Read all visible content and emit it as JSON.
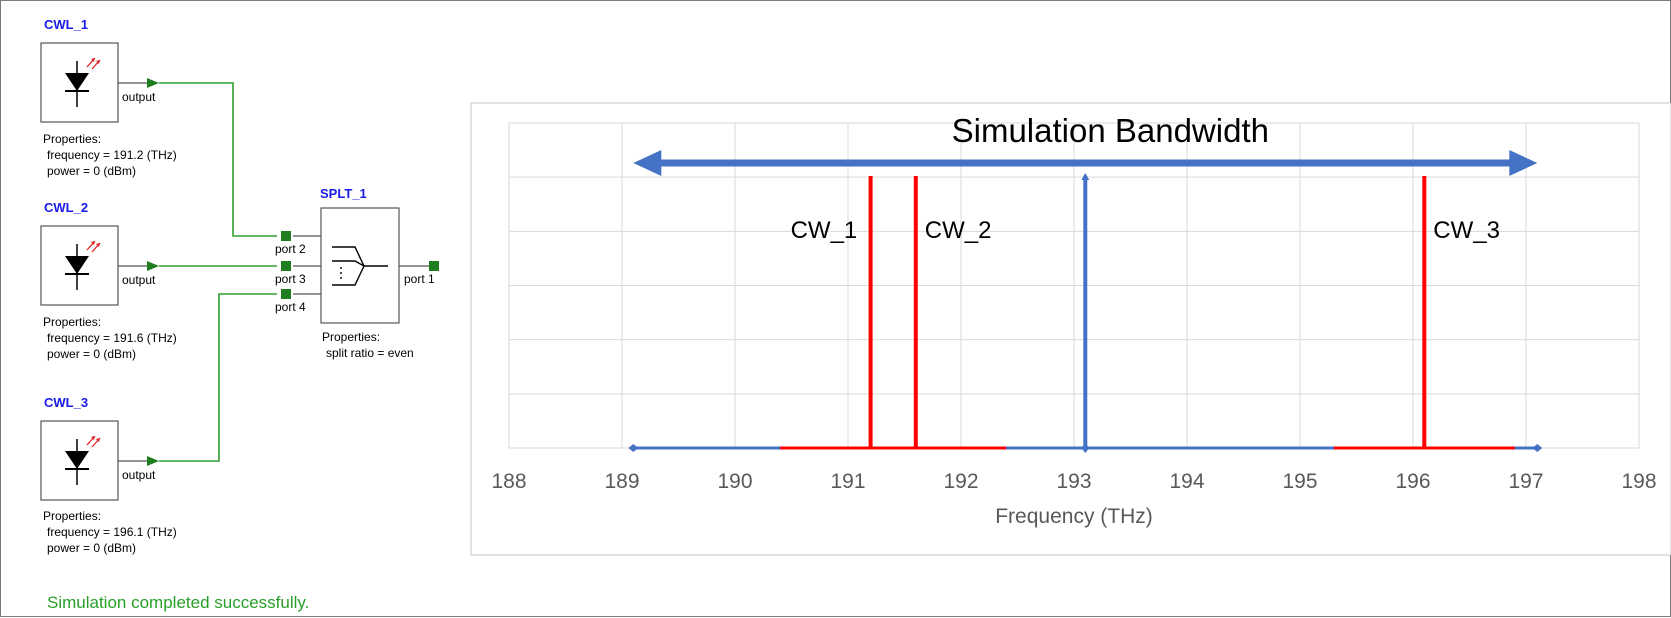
{
  "schematic": {
    "lasers": [
      {
        "name": "CWL_1",
        "port": "output",
        "properties_label": "Properties:",
        "frequency": "frequency = 191.2 (THz)",
        "power": "power = 0 (dBm)"
      },
      {
        "name": "CWL_2",
        "port": "output",
        "properties_label": "Properties:",
        "frequency": "frequency = 191.6 (THz)",
        "power": "power = 0 (dBm)"
      },
      {
        "name": "CWL_3",
        "port": "output",
        "properties_label": "Properties:",
        "frequency": "frequency = 196.1 (THz)",
        "power": "power = 0 (dBm)"
      }
    ],
    "splitter": {
      "name": "SPLT_1",
      "inputs": [
        "port 2",
        "port 3",
        "port 4"
      ],
      "output": "port 1",
      "properties_label": "Properties:",
      "split_ratio": "split ratio = even"
    },
    "colors": {
      "wire": "#2ea02e",
      "port": "#1e7d1e",
      "name": "#1a1ae6"
    }
  },
  "status": {
    "message": "Simulation completed successfully."
  },
  "chart_data": {
    "type": "line",
    "xlabel": "Frequency (THz)",
    "xlim": [
      188,
      198
    ],
    "x_ticks": [
      188,
      189,
      190,
      191,
      192,
      193,
      194,
      195,
      196,
      197,
      198
    ],
    "grid": true,
    "annotations": [
      {
        "text": "Simulation Bandwidth",
        "kind": "double-arrow",
        "x_start": 189.1,
        "x_end": 197.1,
        "color": "#4472c4"
      }
    ],
    "series": [
      {
        "name": "CW_1",
        "x": 191.2,
        "color": "#ff0000",
        "base_range": [
          190.4,
          192.4
        ]
      },
      {
        "name": "CW_2",
        "x": 191.6,
        "color": "#ff0000",
        "base_range": [
          190.4,
          192.4
        ]
      },
      {
        "name": "CW_3",
        "x": 196.1,
        "color": "#ff0000",
        "base_range": [
          195.3,
          196.9
        ]
      }
    ],
    "center": {
      "x": 193.1,
      "color": "#4472c4"
    },
    "baseline": {
      "range": [
        189.1,
        197.1
      ],
      "color": "#4472c4"
    }
  }
}
